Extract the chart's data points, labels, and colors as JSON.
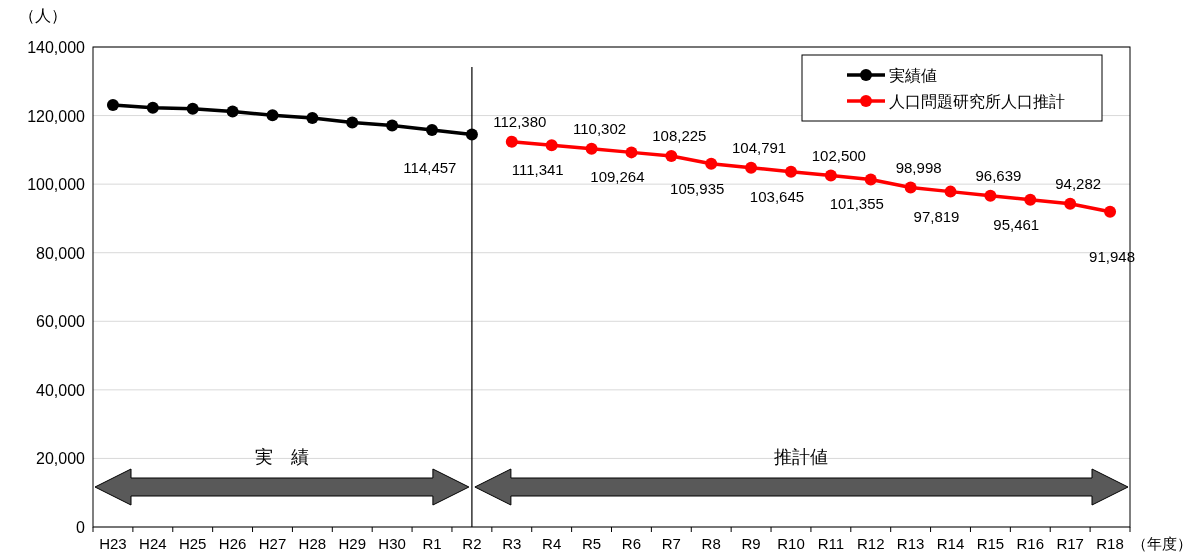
{
  "chart_data": {
    "type": "line",
    "categories": [
      "H23",
      "H24",
      "H25",
      "H26",
      "H27",
      "H28",
      "H29",
      "H30",
      "R1",
      "R2",
      "R3",
      "R4",
      "R5",
      "R6",
      "R7",
      "R8",
      "R9",
      "R10",
      "R11",
      "R12",
      "R13",
      "R14",
      "R15",
      "R16",
      "R17",
      "R18"
    ],
    "series": [
      {
        "name": "実績値",
        "color": "#000000",
        "values": [
          123100,
          122300,
          122000,
          121200,
          120100,
          119300,
          118000,
          117100,
          115800,
          114457,
          null,
          null,
          null,
          null,
          null,
          null,
          null,
          null,
          null,
          null,
          null,
          null,
          null,
          null,
          null,
          null
        ],
        "value_labels": [
          null,
          null,
          null,
          null,
          null,
          null,
          null,
          null,
          null,
          "114,457",
          null,
          null,
          null,
          null,
          null,
          null,
          null,
          null,
          null,
          null,
          null,
          null,
          null,
          null,
          null,
          null
        ]
      },
      {
        "name": "人口問題研究所人口推計",
        "color": "#ff0000",
        "values": [
          null,
          null,
          null,
          null,
          null,
          null,
          null,
          null,
          null,
          null,
          112380,
          111341,
          110302,
          109264,
          108225,
          105935,
          104791,
          103645,
          102500,
          101355,
          98998,
          97819,
          96639,
          95461,
          94282,
          91948
        ],
        "value_labels": [
          null,
          null,
          null,
          null,
          null,
          null,
          null,
          null,
          null,
          null,
          "112,380",
          "111,341",
          "110,302",
          "109,264",
          "108,225",
          "105,935",
          "104,791",
          "103,645",
          "102,500",
          "101,355",
          "98,998",
          "97,819",
          "96,639",
          "95,461",
          "94,282",
          "91,948"
        ]
      }
    ],
    "ylim": [
      0,
      140000
    ],
    "yticks": [
      {
        "value": 0,
        "label": "0"
      },
      {
        "value": 20000,
        "label": "20,000"
      },
      {
        "value": 40000,
        "label": "40,000"
      },
      {
        "value": 60000,
        "label": "60,000"
      },
      {
        "value": 80000,
        "label": "80,000"
      },
      {
        "value": 100000,
        "label": "100,000"
      },
      {
        "value": 120000,
        "label": "120,000"
      },
      {
        "value": 140000,
        "label": "140,000"
      }
    ],
    "ylabel": "（人）",
    "xlabel": "（年度）",
    "ref_lines": [
      {
        "axis": "x",
        "value": "R2",
        "color": "#000000"
      }
    ],
    "annotations": [
      "実　績",
      "推計値"
    ],
    "grid": "y",
    "legend": "top right",
    "marker": "circle",
    "line_style": "solid"
  }
}
